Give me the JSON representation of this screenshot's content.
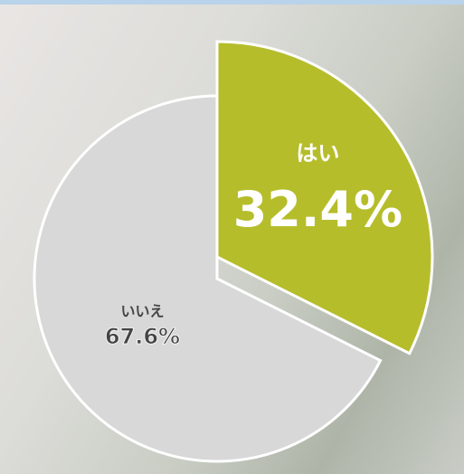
{
  "chart_data": {
    "type": "pie",
    "categories": [
      "はい",
      "いいえ"
    ],
    "values": [
      32.4,
      67.6
    ],
    "value_labels": [
      "32.4%",
      "67.6%"
    ],
    "colors": [
      "#b6bd2b",
      "#d8d8d8"
    ]
  }
}
